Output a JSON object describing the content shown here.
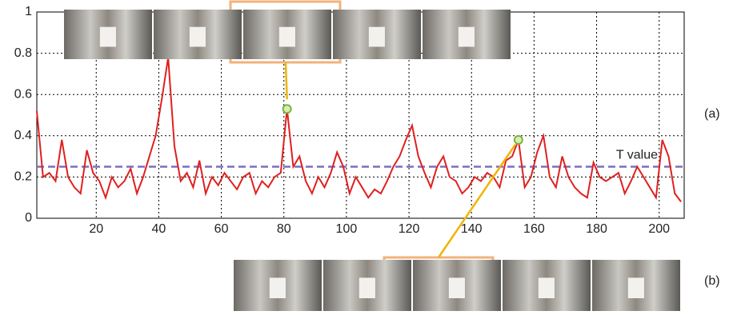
{
  "chart_data": {
    "type": "line",
    "x": [
      1,
      3,
      5,
      7,
      9,
      11,
      13,
      15,
      17,
      19,
      21,
      23,
      25,
      27,
      29,
      31,
      33,
      35,
      37,
      39,
      41,
      43,
      45,
      47,
      49,
      51,
      53,
      55,
      57,
      59,
      61,
      63,
      65,
      67,
      69,
      71,
      73,
      75,
      77,
      79,
      81,
      83,
      85,
      87,
      89,
      91,
      93,
      95,
      97,
      99,
      101,
      103,
      105,
      107,
      109,
      111,
      113,
      115,
      117,
      119,
      121,
      123,
      125,
      127,
      129,
      131,
      133,
      135,
      137,
      139,
      141,
      143,
      145,
      147,
      149,
      151,
      153,
      155,
      157,
      159,
      161,
      163,
      165,
      167,
      169,
      171,
      173,
      175,
      177,
      179,
      181,
      183,
      185,
      187,
      189,
      191,
      193,
      195,
      197,
      199,
      201,
      203,
      205,
      207
    ],
    "series": [
      {
        "color": "#e02020",
        "values": [
          0.52,
          0.2,
          0.22,
          0.18,
          0.38,
          0.2,
          0.15,
          0.12,
          0.33,
          0.22,
          0.18,
          0.1,
          0.2,
          0.15,
          0.18,
          0.24,
          0.12,
          0.2,
          0.3,
          0.4,
          0.58,
          0.78,
          0.35,
          0.18,
          0.22,
          0.15,
          0.28,
          0.12,
          0.2,
          0.16,
          0.22,
          0.18,
          0.14,
          0.2,
          0.22,
          0.12,
          0.18,
          0.15,
          0.2,
          0.22,
          0.53,
          0.25,
          0.3,
          0.18,
          0.12,
          0.2,
          0.15,
          0.22,
          0.32,
          0.25,
          0.12,
          0.2,
          0.15,
          0.1,
          0.14,
          0.12,
          0.18,
          0.25,
          0.3,
          0.38,
          0.45,
          0.3,
          0.22,
          0.15,
          0.25,
          0.3,
          0.2,
          0.18,
          0.12,
          0.15,
          0.2,
          0.18,
          0.22,
          0.2,
          0.15,
          0.28,
          0.3,
          0.38,
          0.15,
          0.2,
          0.32,
          0.4,
          0.2,
          0.15,
          0.3,
          0.2,
          0.15,
          0.12,
          0.1,
          0.27,
          0.2,
          0.18,
          0.2,
          0.22,
          0.12,
          0.18,
          0.25,
          0.2,
          0.15,
          0.1,
          0.38,
          0.3,
          0.12,
          0.08
        ]
      }
    ],
    "xlim": [
      1,
      208
    ],
    "xticks": [
      20,
      40,
      60,
      80,
      100,
      120,
      140,
      160,
      180,
      200
    ],
    "ylim": [
      0,
      1
    ],
    "yticks": [
      0,
      0.2,
      0.4,
      0.6,
      0.8,
      1
    ],
    "grid": true,
    "threshold": {
      "value": 0.25,
      "label": "T value",
      "color": "#7a6fc0"
    },
    "highlights": [
      {
        "x": 81,
        "y": 0.53
      },
      {
        "x": 155,
        "y": 0.38
      }
    ],
    "panel_labels": [
      "(a)",
      "(b)"
    ]
  }
}
